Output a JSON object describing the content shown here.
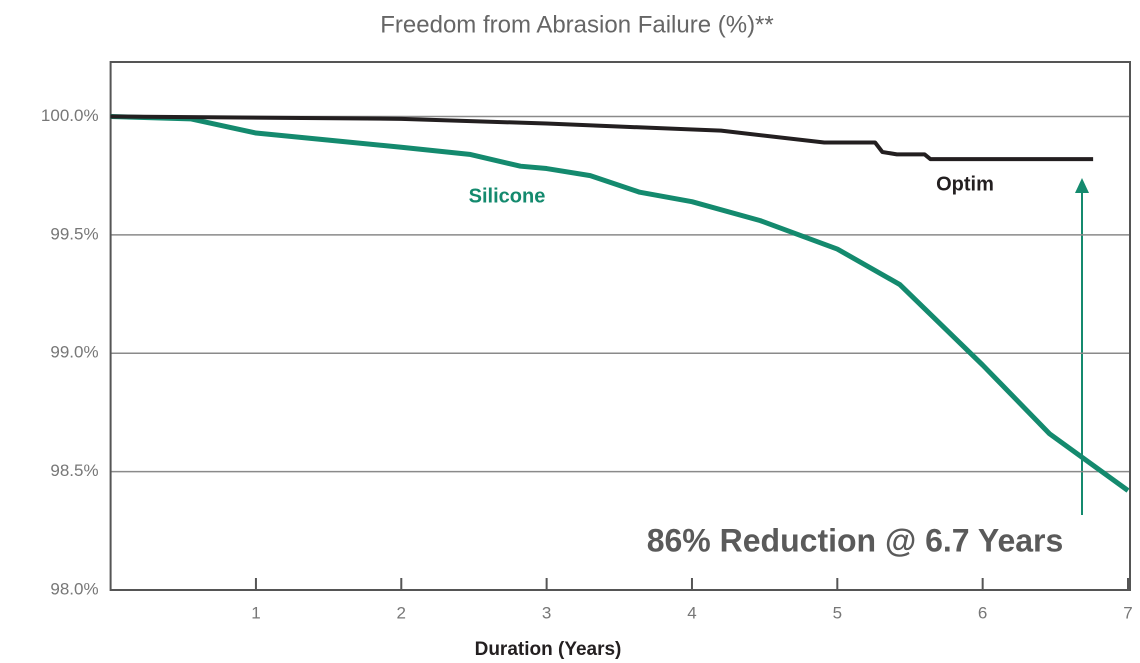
{
  "chart_data": {
    "type": "line",
    "title": "Freedom from Abrasion Failure (%)**",
    "x_label": "Duration (Years)",
    "annotation": "86% Reduction @ 6.7 Years",
    "xlim": [
      0,
      7
    ],
    "ylim": [
      98,
      100.23
    ],
    "xticks": [
      1,
      2,
      3,
      4,
      5,
      6,
      7
    ],
    "yticks": [
      {
        "value": 98,
        "label": "98.0%"
      },
      {
        "value": 98.5,
        "label": "98.5%"
      },
      {
        "value": 99,
        "label": "99.0%"
      },
      {
        "value": 99.5,
        "label": "99.5%"
      },
      {
        "value": 100,
        "label": "100.0%"
      }
    ],
    "grid": true,
    "series": [
      {
        "name": "Silicone",
        "color": "#148a6e",
        "x": [
          0,
          0.55,
          1,
          1.5,
          2,
          2.47,
          2.82,
          3,
          3.3,
          3.64,
          4,
          4.47,
          5,
          5.43,
          6,
          6.46,
          7
        ],
        "values": [
          100.0,
          99.99,
          99.93,
          99.9,
          99.87,
          99.84,
          99.79,
          99.78,
          99.75,
          99.68,
          99.64,
          99.56,
          99.44,
          99.29,
          98.95,
          98.66,
          98.42
        ]
      },
      {
        "name": "Optim",
        "color": "#231f20",
        "x": [
          0,
          2,
          3,
          4.2,
          4.91,
          5.26,
          5.31,
          5.41,
          5.6,
          5.64,
          6.76
        ],
        "values": [
          100.0,
          99.99,
          99.97,
          99.94,
          99.89,
          99.89,
          99.85,
          99.84,
          99.84,
          99.82,
          99.82
        ]
      }
    ]
  }
}
